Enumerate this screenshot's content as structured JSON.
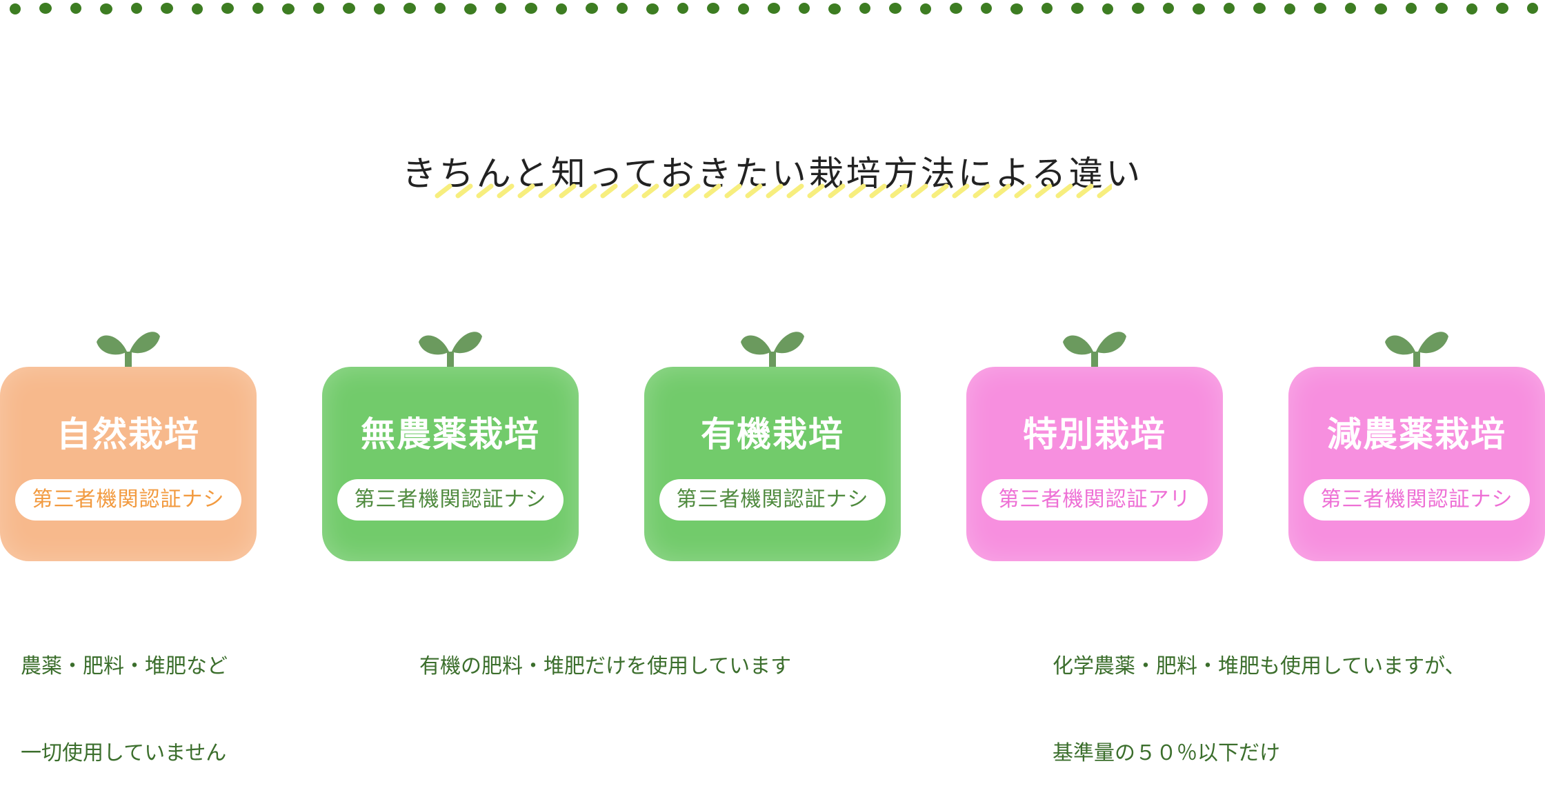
{
  "heading": "きちんと知っておきたい栽培方法による違い",
  "colors": {
    "dots": "#3d7d22",
    "heading_underline": "#f7ee7e",
    "sprout": "#6b9a5e",
    "description_text": "#3b6e2c"
  },
  "cards": [
    {
      "title": "自然栽培",
      "badge": "第三者機関認証ナシ",
      "color": "#f7b98c",
      "badge_text_color": "#f29a3f"
    },
    {
      "title": "無農薬栽培",
      "badge": "第三者機関認証ナシ",
      "color": "#72cb6b",
      "badge_text_color": "#4f8a3e"
    },
    {
      "title": "有機栽培",
      "badge": "第三者機関認証ナシ",
      "color": "#72cb6b",
      "badge_text_color": "#4f8a3e"
    },
    {
      "title": "特別栽培",
      "badge": "第三者機関認証アリ",
      "color": "#f78fdf",
      "badge_text_color": "#ee6fd5"
    },
    {
      "title": "減農薬栽培",
      "badge": "第三者機関認証ナシ",
      "color": "#f78fdf",
      "badge_text_color": "#ee6fd5"
    }
  ],
  "descriptions": [
    {
      "line1": "農薬・肥料・堆肥など",
      "line2": "一切使用していません"
    },
    {
      "line1": "有機の肥料・堆肥だけを使用しています",
      "line2": ""
    },
    {
      "line1": "化学農薬・肥料・堆肥も使用していますが、",
      "line2": "基準量の５０％以下だけ"
    }
  ]
}
